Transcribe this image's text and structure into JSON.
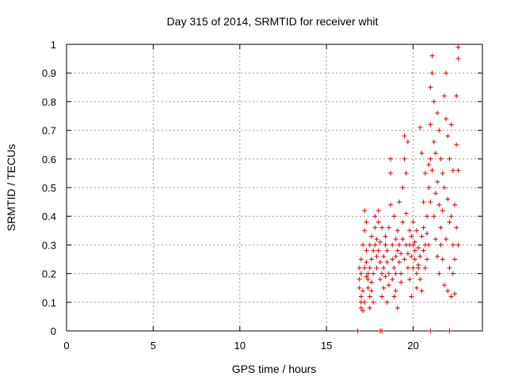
{
  "chart_data": {
    "type": "scatter",
    "title": "Day 315 of 2014, SRMTID for receiver whit",
    "xlabel": "GPS time / hours",
    "ylabel": "SRMTID / TECUs",
    "xlim": [
      0,
      24
    ],
    "ylim": [
      0,
      1
    ],
    "x_ticks": [
      0,
      5,
      10,
      15,
      20
    ],
    "y_ticks": [
      0,
      0.1,
      0.2,
      0.3,
      0.4,
      0.5,
      0.6,
      0.7,
      0.8,
      0.9,
      1
    ],
    "x_tick_labels": [
      "0",
      "5",
      "10",
      "15",
      "20"
    ],
    "y_tick_labels": [
      "0",
      "0.1",
      "0.2",
      "0.3",
      "0.4",
      "0.5",
      "0.6",
      "0.7",
      "0.8",
      "0.9",
      "1"
    ],
    "grid": true,
    "marker": "+",
    "marker_color": "#dd0000",
    "series": [
      {
        "name": "SRMTID",
        "points": [
          [
            16.8,
            0.0
          ],
          [
            16.8,
            0.0
          ],
          [
            18.1,
            0.0
          ],
          [
            18.2,
            0.0
          ],
          [
            21.0,
            0.0
          ],
          [
            22.1,
            0.0
          ],
          [
            16.9,
            0.22
          ],
          [
            16.9,
            0.18
          ],
          [
            16.9,
            0.15
          ],
          [
            17.0,
            0.1
          ],
          [
            17.0,
            0.08
          ],
          [
            17.0,
            0.12
          ],
          [
            17.0,
            0.2
          ],
          [
            17.0,
            0.25
          ],
          [
            17.1,
            0.07
          ],
          [
            17.1,
            0.14
          ],
          [
            17.1,
            0.3
          ],
          [
            17.2,
            0.22
          ],
          [
            17.2,
            0.1
          ],
          [
            17.2,
            0.35
          ],
          [
            17.2,
            0.42
          ],
          [
            17.3,
            0.28
          ],
          [
            17.3,
            0.19
          ],
          [
            17.3,
            0.24
          ],
          [
            17.3,
            0.38
          ],
          [
            17.4,
            0.15
          ],
          [
            17.4,
            0.2
          ],
          [
            17.4,
            0.18
          ],
          [
            17.5,
            0.12
          ],
          [
            17.5,
            0.22
          ],
          [
            17.5,
            0.3
          ],
          [
            17.5,
            0.08
          ],
          [
            17.6,
            0.17
          ],
          [
            17.6,
            0.25
          ],
          [
            17.6,
            0.14
          ],
          [
            17.6,
            0.33
          ],
          [
            17.7,
            0.28
          ],
          [
            17.7,
            0.2
          ],
          [
            17.7,
            0.1
          ],
          [
            17.8,
            0.36
          ],
          [
            17.8,
            0.4
          ],
          [
            17.8,
            0.3
          ],
          [
            17.9,
            0.22
          ],
          [
            17.9,
            0.26
          ],
          [
            17.9,
            0.32
          ],
          [
            18.0,
            0.38
          ],
          [
            18.0,
            0.42
          ],
          [
            18.0,
            0.28
          ],
          [
            18.1,
            0.24
          ],
          [
            18.1,
            0.18
          ],
          [
            18.1,
            0.31
          ],
          [
            18.2,
            0.36
          ],
          [
            18.2,
            0.12
          ],
          [
            18.2,
            0.2
          ],
          [
            18.3,
            0.26
          ],
          [
            18.3,
            0.22
          ],
          [
            18.3,
            0.15
          ],
          [
            18.4,
            0.3
          ],
          [
            18.4,
            0.33
          ],
          [
            18.4,
            0.19
          ],
          [
            18.5,
            0.1
          ],
          [
            18.5,
            0.24
          ],
          [
            18.5,
            0.28
          ],
          [
            18.6,
            0.2
          ],
          [
            18.6,
            0.36
          ],
          [
            18.6,
            0.16
          ],
          [
            18.7,
            0.44
          ],
          [
            18.7,
            0.6
          ],
          [
            18.7,
            0.55
          ],
          [
            18.8,
            0.25
          ],
          [
            18.8,
            0.3
          ],
          [
            18.8,
            0.18
          ],
          [
            18.9,
            0.4
          ],
          [
            18.9,
            0.22
          ],
          [
            18.9,
            0.12
          ],
          [
            19.0,
            0.26
          ],
          [
            19.0,
            0.32
          ],
          [
            19.0,
            0.2
          ],
          [
            19.0,
            0.14
          ],
          [
            19.1,
            0.28
          ],
          [
            19.1,
            0.35
          ],
          [
            19.1,
            0.08
          ],
          [
            19.2,
            0.24
          ],
          [
            19.2,
            0.3
          ],
          [
            19.2,
            0.45
          ],
          [
            19.3,
            0.2
          ],
          [
            19.3,
            0.27
          ],
          [
            19.3,
            0.17
          ],
          [
            19.4,
            0.38
          ],
          [
            19.4,
            0.32
          ],
          [
            19.4,
            0.5
          ],
          [
            19.5,
            0.25
          ],
          [
            19.5,
            0.6
          ],
          [
            19.5,
            0.68
          ],
          [
            19.6,
            0.3
          ],
          [
            19.6,
            0.41
          ],
          [
            19.6,
            0.55
          ],
          [
            19.7,
            0.27
          ],
          [
            19.7,
            0.22
          ],
          [
            19.7,
            0.66
          ],
          [
            19.8,
            0.3
          ],
          [
            19.8,
            0.35
          ],
          [
            19.8,
            0.18
          ],
          [
            19.9,
            0.26
          ],
          [
            19.9,
            0.33
          ],
          [
            19.9,
            0.12
          ],
          [
            20.0,
            0.3
          ],
          [
            20.0,
            0.22
          ],
          [
            20.0,
            0.38
          ],
          [
            20.1,
            0.28
          ],
          [
            20.1,
            0.31
          ],
          [
            20.1,
            0.25
          ],
          [
            20.2,
            0.2
          ],
          [
            20.2,
            0.35
          ],
          [
            20.2,
            0.15
          ],
          [
            20.3,
            0.23
          ],
          [
            20.3,
            0.29
          ],
          [
            20.3,
            0.22
          ],
          [
            20.4,
            0.18
          ],
          [
            20.4,
            0.26
          ],
          [
            20.4,
            0.71
          ],
          [
            20.5,
            0.33
          ],
          [
            20.5,
            0.14
          ],
          [
            20.5,
            0.62
          ],
          [
            20.6,
            0.28
          ],
          [
            20.6,
            0.36
          ],
          [
            20.6,
            0.45
          ],
          [
            20.7,
            0.3
          ],
          [
            20.7,
            0.22
          ],
          [
            20.7,
            0.55
          ],
          [
            20.8,
            0.25
          ],
          [
            20.8,
            0.4
          ],
          [
            20.8,
            0.34
          ],
          [
            20.9,
            0.5
          ],
          [
            20.9,
            0.58
          ],
          [
            20.9,
            0.3
          ],
          [
            21.0,
            0.72
          ],
          [
            21.0,
            0.85
          ],
          [
            21.0,
            0.6
          ],
          [
            21.0,
            0.45
          ],
          [
            21.1,
            0.96
          ],
          [
            21.1,
            0.9
          ],
          [
            21.1,
            0.56
          ],
          [
            21.2,
            0.8
          ],
          [
            21.2,
            0.66
          ],
          [
            21.2,
            0.4
          ],
          [
            21.3,
            0.48
          ],
          [
            21.3,
            0.62
          ],
          [
            21.3,
            0.32
          ],
          [
            21.4,
            0.76
          ],
          [
            21.4,
            0.52
          ],
          [
            21.4,
            0.26
          ],
          [
            21.5,
            0.7
          ],
          [
            21.5,
            0.44
          ],
          [
            21.5,
            0.2
          ],
          [
            21.6,
            0.6
          ],
          [
            21.6,
            0.36
          ],
          [
            21.6,
            0.3
          ],
          [
            21.7,
            0.55
          ],
          [
            21.7,
            0.25
          ],
          [
            21.7,
            0.42
          ],
          [
            21.8,
            0.82
          ],
          [
            21.8,
            0.5
          ],
          [
            21.8,
            0.16
          ],
          [
            21.9,
            0.9
          ],
          [
            21.9,
            0.74
          ],
          [
            21.9,
            0.32
          ],
          [
            22.0,
            0.68
          ],
          [
            22.0,
            0.46
          ],
          [
            22.0,
            0.14
          ],
          [
            22.1,
            0.6
          ],
          [
            22.1,
            0.38
          ],
          [
            22.1,
            0.22
          ],
          [
            22.2,
            0.72
          ],
          [
            22.2,
            0.4
          ],
          [
            22.2,
            0.12
          ],
          [
            22.3,
            0.56
          ],
          [
            22.3,
            0.3
          ],
          [
            22.3,
            0.2
          ],
          [
            22.4,
            0.44
          ],
          [
            22.4,
            0.25
          ],
          [
            22.4,
            0.13
          ],
          [
            22.5,
            0.65
          ],
          [
            22.5,
            0.36
          ],
          [
            22.5,
            0.82
          ],
          [
            22.6,
            0.95
          ],
          [
            22.6,
            0.99
          ],
          [
            22.6,
            0.56
          ],
          [
            22.6,
            0.3
          ]
        ]
      }
    ]
  }
}
